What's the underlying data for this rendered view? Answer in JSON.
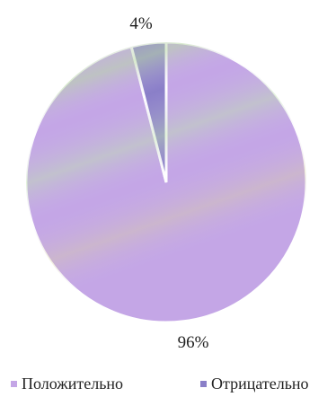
{
  "chart_data": {
    "type": "pie",
    "title": "",
    "slices": [
      {
        "name": "Положительно",
        "value": 96,
        "label": "96%",
        "color": "#c4a6e6"
      },
      {
        "name": "Отрицательно",
        "value": 4,
        "label": "4%",
        "color": "#8a7fc8"
      }
    ],
    "legend_position": "bottom"
  }
}
